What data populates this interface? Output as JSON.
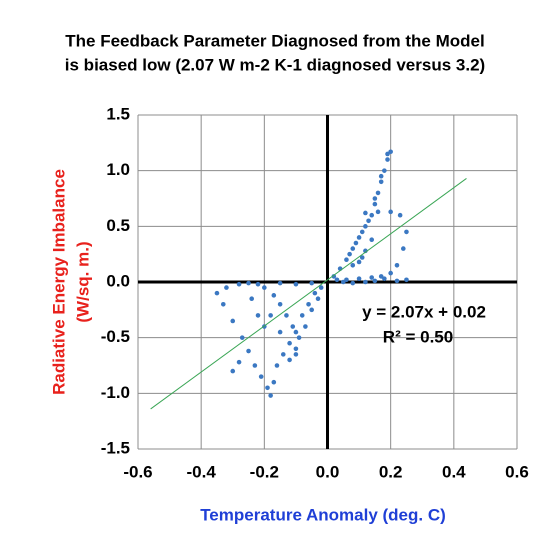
{
  "chart_data": {
    "type": "scatter",
    "title": [
      "The Feedback Parameter Diagnosed from the Model",
      "is biased low (2.07 W m-2 K-1 diagnosed versus 3.2)"
    ],
    "x_label": "Temperature Anomaly (deg. C)",
    "y_label": [
      "Radiative Energy Imbalance",
      "(W/sq. m.)"
    ],
    "annotations": [
      "y = 2.07x + 0.02",
      "R² = 0.50"
    ],
    "xlim": [
      -0.6,
      0.6
    ],
    "ylim": [
      -1.5,
      1.5
    ],
    "xticks": [
      -0.6,
      -0.4,
      -0.2,
      {
        "value": 0,
        "label": "0.0"
      },
      0.2,
      0.4,
      0.6
    ],
    "yticks": [
      1.5,
      {
        "value": 1,
        "label": "1.0"
      },
      0.5,
      {
        "value": 0,
        "label": "0.0"
      },
      -0.5,
      {
        "value": -1,
        "label": "-1.0"
      },
      -1.5
    ],
    "grid": true,
    "series": [
      {
        "color": "#3b78c2",
        "x": [
          0.02,
          0.04,
          0.06,
          0.08,
          0.1,
          0.12,
          0.14,
          0.15,
          0.16,
          0.17,
          0.18,
          0.19,
          0.2,
          0.19,
          0.17,
          0.15,
          0.13,
          0.11,
          0.09,
          0.07,
          0.12,
          0.16,
          0.2,
          0.23,
          0.25,
          0.24,
          0.22,
          0.2,
          0.17,
          0.14,
          0.1,
          0.06,
          0.25,
          0.22,
          0.18,
          0.05,
          0.08,
          0.12,
          0.15,
          0.03,
          0.1,
          0.12,
          0.14,
          0.08,
          0.11,
          -0.02,
          -0.04,
          -0.06,
          -0.08,
          -0.1,
          -0.12,
          -0.1,
          -0.09,
          -0.11,
          -0.13,
          -0.15,
          -0.17,
          -0.2,
          -0.22,
          -0.25,
          -0.28,
          -0.32,
          -0.35,
          -0.33,
          -0.3,
          -0.27,
          -0.25,
          -0.23,
          -0.21,
          -0.19,
          -0.18,
          -0.17,
          -0.16,
          -0.14,
          -0.12,
          -0.1,
          -0.07,
          -0.05,
          -0.03,
          -0.18,
          -0.2,
          -0.22,
          -0.15,
          -0.24,
          -0.1,
          -0.05,
          -0.15,
          -0.3,
          -0.28
        ],
        "y": [
          0.05,
          0.12,
          0.2,
          0.3,
          0.4,
          0.5,
          0.6,
          0.7,
          0.8,
          0.9,
          1.0,
          1.1,
          1.17,
          1.15,
          0.95,
          0.75,
          0.55,
          0.45,
          0.35,
          0.25,
          0.62,
          0.63,
          0.63,
          0.6,
          0.45,
          0.3,
          0.15,
          0.08,
          0.05,
          0.04,
          0.03,
          0.02,
          0.02,
          0.01,
          0.03,
          0.0,
          -0.01,
          0.0,
          0.01,
          0.02,
          0.18,
          0.28,
          0.38,
          0.15,
          0.22,
          -0.05,
          -0.1,
          -0.2,
          -0.3,
          -0.45,
          -0.55,
          -0.6,
          -0.5,
          -0.4,
          -0.3,
          -0.2,
          -0.12,
          -0.05,
          -0.02,
          -0.01,
          -0.02,
          -0.05,
          -0.1,
          -0.2,
          -0.35,
          -0.5,
          -0.62,
          -0.75,
          -0.85,
          -0.95,
          -1.02,
          -0.9,
          -0.75,
          -0.65,
          -0.7,
          -0.65,
          -0.4,
          -0.25,
          -0.15,
          -0.3,
          -0.4,
          -0.3,
          -0.45,
          -0.15,
          -0.02,
          -0.01,
          -0.01,
          -0.8,
          -0.72
        ]
      }
    ],
    "trendline": {
      "color": "#3aa655",
      "x": [
        -0.56,
        0.44
      ],
      "y": [
        -1.14,
        0.93
      ]
    }
  }
}
